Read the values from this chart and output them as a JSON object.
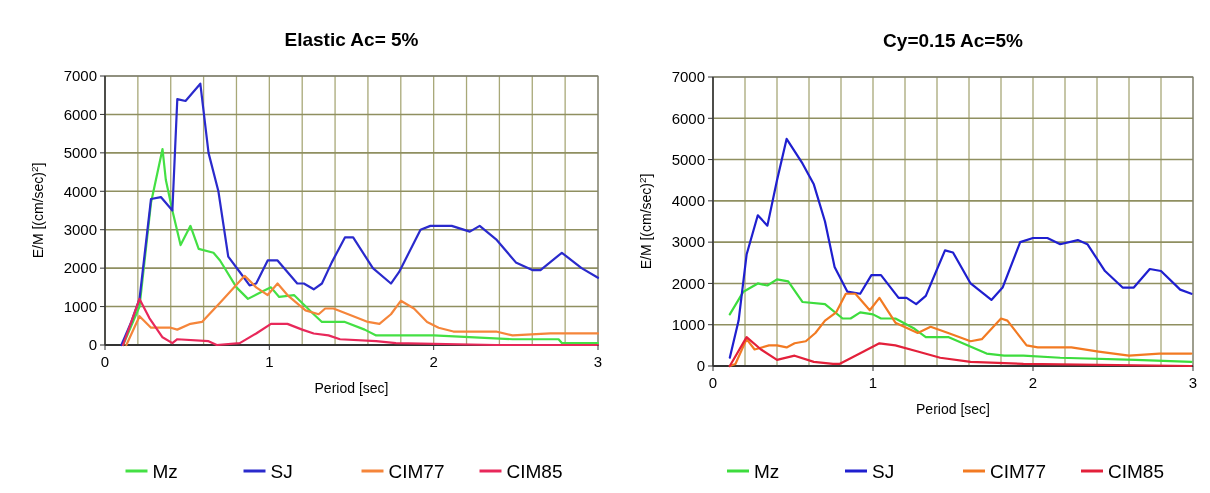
{
  "chart_data": [
    {
      "type": "line",
      "title": "Elastic   Ac= 5%",
      "xlabel": "Period [sec]",
      "ylabel": "E/M [(cm/sec)$^{2}$]",
      "xlim": [
        0,
        3
      ],
      "xticks": [
        0,
        {
          "value": 0.2,
          "label": null
        },
        {
          "value": 0.4,
          "label": null
        },
        {
          "value": 0.6,
          "label": null
        },
        {
          "value": 0.8,
          "label": null
        },
        1,
        {
          "value": 1.2,
          "label": null
        },
        {
          "value": 1.4,
          "label": null
        },
        {
          "value": 1.6,
          "label": null
        },
        {
          "value": 1.8,
          "label": null
        },
        2,
        {
          "value": 2.2,
          "label": null
        },
        {
          "value": 2.4,
          "label": null
        },
        {
          "value": 2.6,
          "label": null
        },
        {
          "value": 2.8,
          "label": null
        },
        3
      ],
      "ylim": [
        0,
        7000
      ],
      "yticks": [
        0,
        1000,
        2000,
        3000,
        4000,
        5000,
        6000,
        7000
      ],
      "grid": true,
      "legend": "bottom",
      "line_style": "solid",
      "marker": "none",
      "series": [
        {
          "name": "Mz",
          "color": "#44e044",
          "x": [
            0.11,
            0.21,
            0.28,
            0.35,
            0.37,
            0.41,
            0.46,
            0.52,
            0.57,
            0.66,
            0.7,
            0.8,
            0.87,
            0.96,
            1.01,
            1.06,
            1.15,
            1.27,
            1.32,
            1.46,
            1.58,
            1.65,
            2.0,
            2.48,
            2.76,
            2.78,
            3.0
          ],
          "values": [
            0,
            1000,
            3700,
            5100,
            4300,
            3500,
            2600,
            3100,
            2500,
            2400,
            2200,
            1500,
            1200,
            1400,
            1500,
            1250,
            1300,
            800,
            600,
            600,
            400,
            250,
            250,
            150,
            150,
            50,
            50
          ]
        },
        {
          "name": "SJ",
          "color": "#2a2acc",
          "x": [
            0.1,
            0.16,
            0.21,
            0.28,
            0.34,
            0.41,
            0.44,
            0.49,
            0.58,
            0.63,
            0.69,
            0.75,
            0.82,
            0.88,
            0.92,
            0.99,
            1.05,
            1.11,
            1.17,
            1.21,
            1.27,
            1.32,
            1.38,
            1.46,
            1.51,
            1.63,
            1.74,
            1.79,
            1.92,
            1.98,
            2.11,
            2.22,
            2.28,
            2.38,
            2.5,
            2.6,
            2.65,
            2.78,
            2.9,
            3.0
          ],
          "values": [
            0,
            600,
            1200,
            3800,
            3850,
            3500,
            6400,
            6350,
            6800,
            5000,
            4000,
            2300,
            1900,
            1550,
            1600,
            2200,
            2200,
            1900,
            1600,
            1600,
            1450,
            1600,
            2150,
            2800,
            2800,
            2000,
            1600,
            1900,
            3000,
            3100,
            3100,
            2950,
            3100,
            2750,
            2150,
            1950,
            1950,
            2400,
            2000,
            1750
          ]
        },
        {
          "name": "CIM77",
          "color": "#f5853a",
          "x": [
            0.13,
            0.21,
            0.28,
            0.4,
            0.44,
            0.52,
            0.59,
            0.7,
            0.85,
            0.92,
            0.99,
            1.05,
            1.11,
            1.22,
            1.3,
            1.34,
            1.39,
            1.48,
            1.6,
            1.67,
            1.74,
            1.8,
            1.88,
            1.96,
            2.03,
            2.12,
            2.38,
            2.48,
            2.71,
            3.0
          ],
          "values": [
            0,
            750,
            450,
            450,
            400,
            550,
            600,
            1100,
            1800,
            1500,
            1300,
            1600,
            1300,
            900,
            800,
            950,
            950,
            800,
            600,
            550,
            800,
            1150,
            950,
            600,
            450,
            350,
            350,
            250,
            300,
            300
          ]
        },
        {
          "name": "CIM85",
          "color": "#e8285a",
          "x": [
            0.11,
            0.21,
            0.27,
            0.35,
            0.41,
            0.44,
            0.63,
            0.68,
            0.82,
            0.92,
            1.01,
            1.11,
            1.2,
            1.27,
            1.36,
            1.43,
            1.65,
            1.77,
            2.38,
            3.0
          ],
          "values": [
            0,
            1200,
            700,
            200,
            50,
            150,
            100,
            0,
            50,
            300,
            550,
            550,
            400,
            300,
            250,
            150,
            100,
            50,
            0,
            0
          ]
        }
      ]
    },
    {
      "type": "line",
      "title": "Cy=0.15  Ac=5%",
      "xlabel": "Period [sec]",
      "ylabel": "E/M [(cm/sec)$^{2}$]",
      "xlim": [
        0,
        3
      ],
      "xticks": [
        0,
        {
          "value": 0.2,
          "label": null
        },
        {
          "value": 0.4,
          "label": null
        },
        {
          "value": 0.6,
          "label": null
        },
        {
          "value": 0.8,
          "label": null
        },
        1,
        {
          "value": 1.2,
          "label": null
        },
        {
          "value": 1.4,
          "label": null
        },
        {
          "value": 1.6,
          "label": null
        },
        {
          "value": 1.8,
          "label": null
        },
        2,
        {
          "value": 2.2,
          "label": null
        },
        {
          "value": 2.4,
          "label": null
        },
        {
          "value": 2.6,
          "label": null
        },
        {
          "value": 2.8,
          "label": null
        },
        3
      ],
      "ylim": [
        0,
        7000
      ],
      "yticks": [
        0,
        1000,
        2000,
        3000,
        4000,
        5000,
        6000,
        7000
      ],
      "grid": true,
      "legend": "bottom",
      "line_style": "solid",
      "marker": "none",
      "series": [
        {
          "name": "Mz",
          "color": "#3ddc3d",
          "x": [
            0.105,
            0.19,
            0.28,
            0.34,
            0.4,
            0.47,
            0.56,
            0.7,
            0.81,
            0.86,
            0.92,
            1.0,
            1.05,
            1.14,
            1.26,
            1.33,
            1.47,
            1.59,
            1.71,
            1.82,
            1.94,
            2.17,
            2.64,
            2.99
          ],
          "values": [
            1250,
            1800,
            2000,
            1950,
            2100,
            2050,
            1550,
            1500,
            1150,
            1150,
            1300,
            1250,
            1150,
            1150,
            900,
            700,
            700,
            500,
            300,
            250,
            250,
            200,
            150,
            100
          ]
        },
        {
          "name": "SJ",
          "color": "#1f1fcf",
          "x": [
            0.105,
            0.16,
            0.21,
            0.28,
            0.34,
            0.4,
            0.46,
            0.56,
            0.63,
            0.7,
            0.76,
            0.84,
            0.92,
            0.99,
            1.05,
            1.16,
            1.21,
            1.27,
            1.33,
            1.45,
            1.5,
            1.61,
            1.74,
            1.81,
            1.92,
            2.0,
            2.09,
            2.17,
            2.28,
            2.34,
            2.45,
            2.56,
            2.63,
            2.73,
            2.8,
            2.92,
            2.99
          ],
          "values": [
            200,
            1100,
            2700,
            3650,
            3400,
            4500,
            5500,
            4900,
            4400,
            3500,
            2400,
            1800,
            1750,
            2200,
            2200,
            1650,
            1650,
            1500,
            1700,
            2800,
            2750,
            2000,
            1600,
            1900,
            3000,
            3100,
            3100,
            2950,
            3050,
            2950,
            2300,
            1900,
            1900,
            2350,
            2300,
            1850,
            1750
          ]
        },
        {
          "name": "CIM77",
          "color": "#f27a22",
          "x": [
            0.105,
            0.14,
            0.21,
            0.26,
            0.35,
            0.4,
            0.46,
            0.51,
            0.58,
            0.64,
            0.7,
            0.77,
            0.83,
            0.89,
            0.98,
            1.04,
            1.14,
            1.28,
            1.36,
            1.47,
            1.61,
            1.68,
            1.8,
            1.84,
            1.96,
            2.03,
            2.24,
            2.41,
            2.6,
            2.79,
            2.99
          ],
          "values": [
            0,
            50,
            650,
            400,
            500,
            500,
            450,
            550,
            600,
            800,
            1100,
            1300,
            1750,
            1750,
            1350,
            1650,
            1050,
            800,
            950,
            800,
            600,
            650,
            1150,
            1100,
            500,
            450,
            450,
            350,
            250,
            300,
            300
          ]
        },
        {
          "name": "CIM85",
          "color": "#e3203a",
          "x": [
            0.105,
            0.21,
            0.3,
            0.4,
            0.51,
            0.63,
            0.75,
            0.79,
            0.89,
            1.04,
            1.14,
            1.28,
            1.42,
            1.61,
            1.94,
            2.99
          ],
          "values": [
            0,
            700,
            400,
            150,
            250,
            100,
            50,
            50,
            250,
            550,
            500,
            350,
            200,
            100,
            50,
            0
          ]
        }
      ]
    }
  ]
}
